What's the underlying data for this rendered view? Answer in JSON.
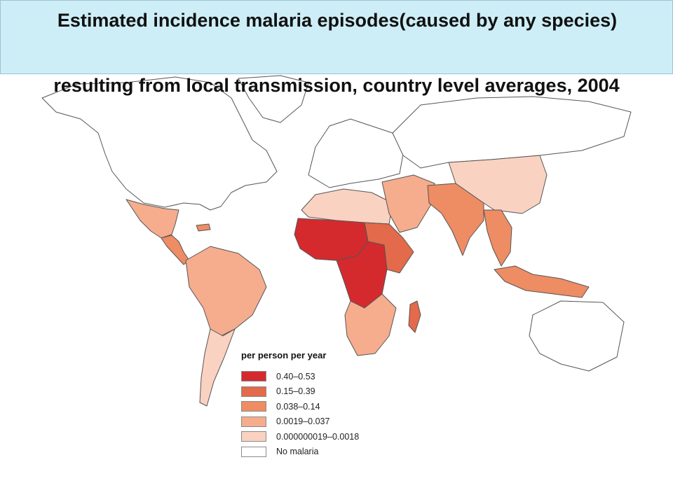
{
  "title": {
    "line1": "Estimated incidence malaria episodes(caused by any species)",
    "line2": "resulting from local transmission, country level averages, 2004"
  },
  "legend": {
    "title": "per person per year",
    "items": [
      {
        "label": "0.40–0.53",
        "color": "#d42a2e"
      },
      {
        "label": "0.15–0.39",
        "color": "#e36a4a"
      },
      {
        "label": "0.038–0.14",
        "color": "#ee8c64"
      },
      {
        "label": "0.0019–0.037",
        "color": "#f5ad8d"
      },
      {
        "label": "0.000000019–0.0018",
        "color": "#fad2c1"
      },
      {
        "label": "No malaria",
        "color": "#ffffff"
      }
    ]
  },
  "map": {
    "regions": [
      {
        "name": "north-america",
        "level": "No malaria"
      },
      {
        "name": "greenland",
        "level": "No malaria"
      },
      {
        "name": "europe",
        "level": "No malaria"
      },
      {
        "name": "russia",
        "level": "No malaria"
      },
      {
        "name": "mexico",
        "level": "0.0019–0.037"
      },
      {
        "name": "central-america",
        "level": "0.038–0.14"
      },
      {
        "name": "caribbean",
        "level": "0.038–0.14"
      },
      {
        "name": "south-america-north",
        "level": "0.0019–0.037"
      },
      {
        "name": "south-america-south",
        "level": "0.000000019–0.0018"
      },
      {
        "name": "north-africa",
        "level": "0.000000019–0.0018"
      },
      {
        "name": "west-africa",
        "level": "0.40–0.53"
      },
      {
        "name": "central-africa",
        "level": "0.40–0.53"
      },
      {
        "name": "east-africa",
        "level": "0.15–0.39"
      },
      {
        "name": "southern-africa",
        "level": "0.0019–0.037"
      },
      {
        "name": "madagascar",
        "level": "0.15–0.39"
      },
      {
        "name": "middle-east",
        "level": "0.0019–0.037"
      },
      {
        "name": "south-asia",
        "level": "0.038–0.14"
      },
      {
        "name": "china",
        "level": "0.000000019–0.0018"
      },
      {
        "name": "southeast-asia",
        "level": "0.038–0.14"
      },
      {
        "name": "indonesia",
        "level": "0.038–0.14"
      },
      {
        "name": "australia",
        "level": "No malaria"
      }
    ]
  }
}
